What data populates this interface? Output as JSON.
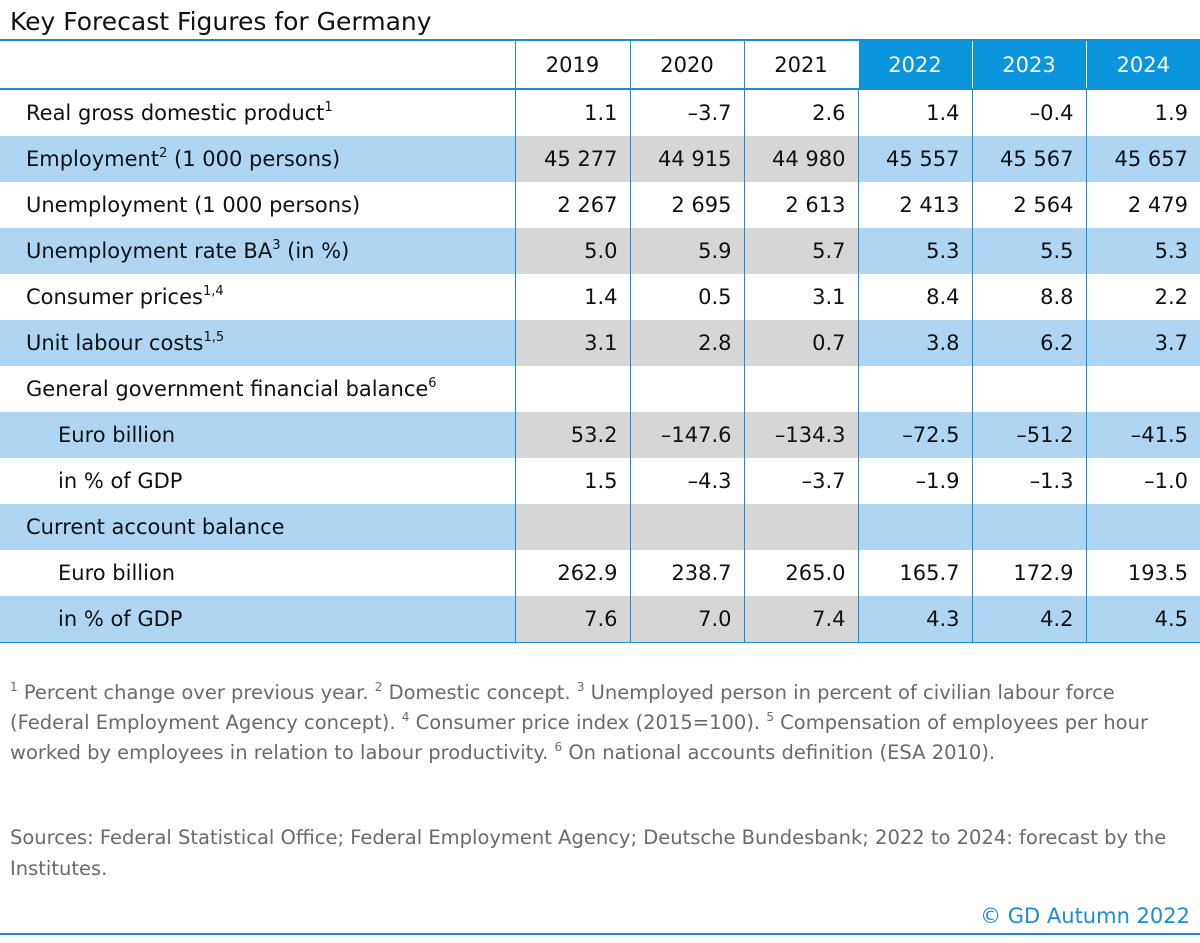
{
  "title": "Key Forecast Figures for Germany",
  "colors": {
    "accent": "#1a8cd8",
    "forecast_header": "#0b95dc",
    "band_blue": "#aed6f2",
    "band_grey": "#d6d6d6",
    "note_text": "#6a6a6a"
  },
  "table": {
    "years": [
      "2019",
      "2020",
      "2021",
      "2022",
      "2023",
      "2024"
    ],
    "forecast_years": [
      "2022",
      "2023",
      "2024"
    ],
    "rows": [
      {
        "label": "Real gross domestic product",
        "sup": "1",
        "values": [
          "1.1",
          "–3.7",
          "2.6",
          "1.4",
          "–0.4",
          "1.9"
        ]
      },
      {
        "label": "Employment",
        "sup": "2",
        "suffix": " (1 000 persons)",
        "values": [
          "45 277",
          "44 915",
          "44 980",
          "45 557",
          "45 567",
          "45 657"
        ]
      },
      {
        "label": "Unemployment (1 000 persons)",
        "values": [
          "2 267",
          "2 695",
          "2 613",
          "2 413",
          "2 564",
          "2 479"
        ]
      },
      {
        "label": "Unemployment rate BA",
        "sup": "3",
        "suffix": " (in %)",
        "values": [
          "5.0",
          "5.9",
          "5.7",
          "5.3",
          "5.5",
          "5.3"
        ]
      },
      {
        "label": "Consumer prices",
        "sup": "1,4",
        "values": [
          "1.4",
          "0.5",
          "3.1",
          "8.4",
          "8.8",
          "2.2"
        ]
      },
      {
        "label": "Unit labour costs",
        "sup": "1,5",
        "values": [
          "3.1",
          "2.8",
          "0.7",
          "3.8",
          "6.2",
          "3.7"
        ]
      },
      {
        "label": "General government financial balance",
        "sup": "6",
        "values": [
          "",
          "",
          "",
          "",
          "",
          ""
        ]
      },
      {
        "label": "Euro billion",
        "indent": true,
        "values": [
          "53.2",
          "–147.6",
          "–134.3",
          "–72.5",
          "–51.2",
          "–41.5"
        ]
      },
      {
        "label": "in % of GDP",
        "indent": true,
        "values": [
          "1.5",
          "–4.3",
          "–3.7",
          "–1.9",
          "–1.3",
          "–1.0"
        ]
      },
      {
        "label": "Current account balance",
        "values": [
          "",
          "",
          "",
          "",
          "",
          ""
        ]
      },
      {
        "label": "Euro billion",
        "indent": true,
        "values": [
          "262.9",
          "238.7",
          "265.0",
          "165.7",
          "172.9",
          "193.5"
        ]
      },
      {
        "label": "in % of GDP",
        "indent": true,
        "values": [
          "7.6",
          "7.0",
          "7.4",
          "4.3",
          "4.2",
          "4.5"
        ]
      }
    ]
  },
  "footnotes": [
    {
      "mark": "1",
      "text": " Percent change over previous year. "
    },
    {
      "mark": "2",
      "text": " Domestic concept. "
    },
    {
      "mark": "3",
      "text": " Unemployed person in percent of civilian labour force (Federal Employment Agency concept). "
    },
    {
      "mark": "4",
      "text": " Consumer price index (2015=100). "
    },
    {
      "mark": "5",
      "text": " Compensation of employees per hour worked by employees in relation to labour productivity. "
    },
    {
      "mark": "6",
      "text": " On national accounts definition (ESA 2010)."
    }
  ],
  "sources": "Sources: Federal Statistical Office; Federal Employment Agency; Deutsche Bundesbank; 2022 to 2024: forecast by the Institutes.",
  "copyright": "© GD Autumn 2022"
}
